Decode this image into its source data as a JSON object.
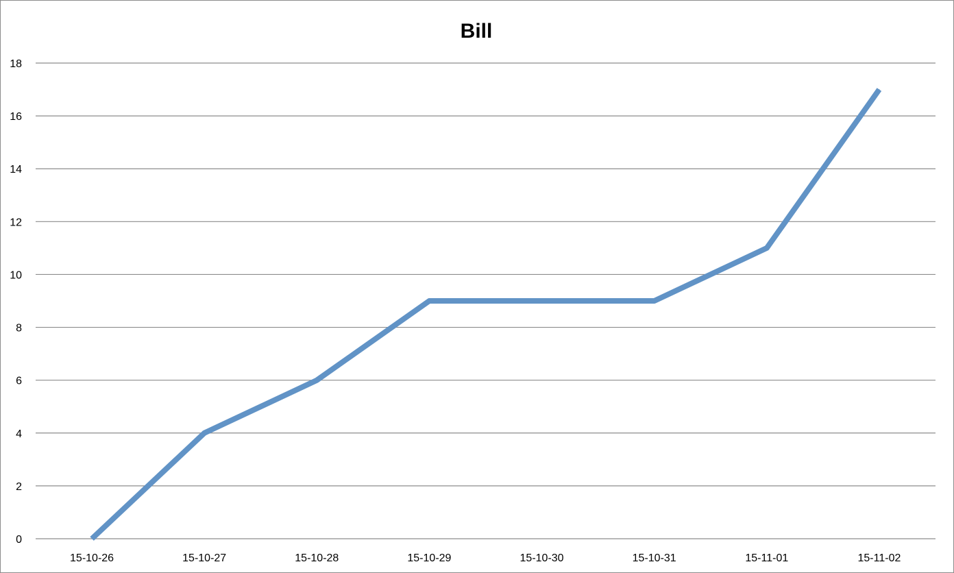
{
  "chart_data": {
    "type": "line",
    "title": "Bill",
    "xlabel": "",
    "ylabel": "",
    "categories": [
      "15-10-26",
      "15-10-27",
      "15-10-28",
      "15-10-29",
      "15-10-30",
      "15-10-31",
      "15-11-01",
      "15-11-02"
    ],
    "series": [
      {
        "values": [
          0,
          4,
          6,
          9,
          9,
          9,
          11,
          17
        ],
        "color": "#6193c6"
      }
    ],
    "ylim": [
      0,
      18
    ],
    "yticks": [
      0,
      2,
      4,
      6,
      8,
      10,
      12,
      14,
      16,
      18
    ],
    "grid": true,
    "legend": "none",
    "gridline_color": "#8c8c8c",
    "axis_color": "#8c8c8c"
  }
}
